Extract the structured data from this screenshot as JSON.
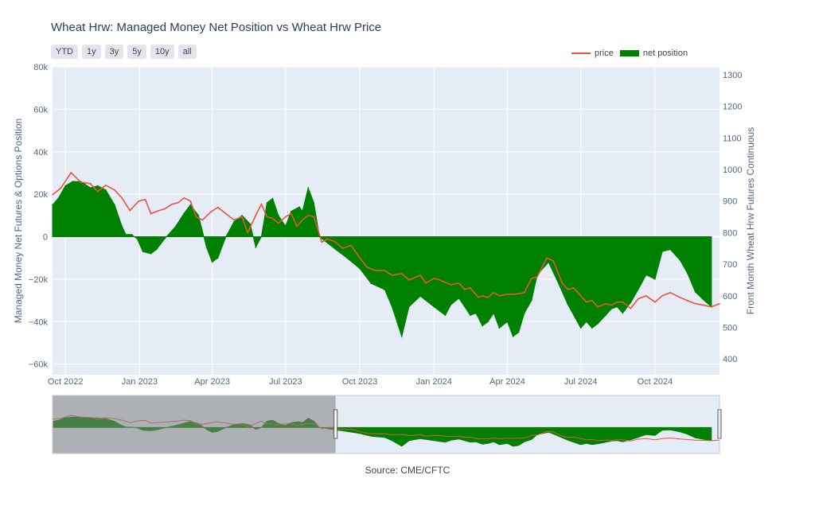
{
  "title": "Wheat Hrw: Managed Money Net Position vs Wheat Hrw Price",
  "range_buttons": [
    "YTD",
    "1y",
    "3y",
    "5y",
    "10y",
    "all"
  ],
  "legend": {
    "price": "price",
    "position": "net position"
  },
  "source": "Source: CME/CFTC",
  "colors": {
    "price": "#e8543b",
    "position": "#008000",
    "plot_bg": "#e5ecf6",
    "rangeslider_mask": "#808080"
  },
  "chart_data": {
    "type": "area",
    "title": "Wheat Hrw: Managed Money Net Position vs Wheat Hrw Price",
    "y_left": {
      "label": "Managed Money Net Futures & Options Position",
      "range": [
        -65000,
        80000
      ],
      "ticks": [
        80000,
        60000,
        40000,
        20000,
        0,
        -20000,
        -40000,
        -60000
      ],
      "tick_labels": [
        "80k",
        "60k",
        "40k",
        "20k",
        "0",
        "−20k",
        "−40k",
        "−60k"
      ]
    },
    "y_right": {
      "label": "Front Month Wheat Hrw Futures Continuous",
      "range": [
        350,
        1325
      ],
      "ticks": [
        1300,
        1200,
        1100,
        1000,
        900,
        800,
        700,
        600,
        500,
        400
      ],
      "tick_labels": [
        "1300",
        "1200",
        "1100",
        "1000",
        "900",
        "800",
        "700",
        "600",
        "500",
        "400"
      ]
    },
    "x": {
      "range": [
        "2022-09-15",
        "2024-12-20"
      ],
      "ticks": [
        "2022-10-01",
        "2023-01-01",
        "2023-04-01",
        "2023-07-01",
        "2023-10-01",
        "2024-01-01",
        "2024-04-01",
        "2024-07-01",
        "2024-10-01"
      ],
      "tick_labels": [
        "Oct 2022",
        "Jan 2023",
        "Apr 2023",
        "Jul 2023",
        "Oct 2023",
        "Jan 2024",
        "Apr 2024",
        "Jul 2024",
        "Oct 2024"
      ]
    },
    "series": [
      {
        "name": "net position",
        "axis": "left",
        "points": [
          [
            "2022-09-15",
            15000
          ],
          [
            "2022-09-22",
            18000
          ],
          [
            "2022-10-01",
            24000
          ],
          [
            "2022-10-10",
            26000
          ],
          [
            "2022-10-20",
            26000
          ],
          [
            "2022-11-01",
            23000
          ],
          [
            "2022-11-10",
            24000
          ],
          [
            "2022-11-20",
            22000
          ],
          [
            "2022-12-01",
            15000
          ],
          [
            "2022-12-10",
            5000
          ],
          [
            "2022-12-15",
            1000
          ],
          [
            "2022-12-22",
            1000
          ],
          [
            "2022-12-29",
            -1000
          ],
          [
            "2023-01-05",
            -7000
          ],
          [
            "2023-01-15",
            -8000
          ],
          [
            "2023-01-22",
            -6000
          ],
          [
            "2023-02-01",
            -1000
          ],
          [
            "2023-02-15",
            5000
          ],
          [
            "2023-02-25",
            11000
          ],
          [
            "2023-03-05",
            15000
          ],
          [
            "2023-03-15",
            10000
          ],
          [
            "2023-03-25",
            -5000
          ],
          [
            "2023-04-01",
            -12000
          ],
          [
            "2023-04-08",
            -10000
          ],
          [
            "2023-04-18",
            0
          ],
          [
            "2023-04-28",
            7000
          ],
          [
            "2023-05-08",
            10000
          ],
          [
            "2023-05-18",
            6000
          ],
          [
            "2023-05-25",
            -5000
          ],
          [
            "2023-06-01",
            0
          ],
          [
            "2023-06-08",
            16000
          ],
          [
            "2023-06-15",
            18000
          ],
          [
            "2023-06-22",
            10000
          ],
          [
            "2023-07-01",
            5000
          ],
          [
            "2023-07-08",
            12000
          ],
          [
            "2023-07-18",
            14000
          ],
          [
            "2023-07-22",
            12000
          ],
          [
            "2023-07-29",
            23000
          ],
          [
            "2023-08-05",
            16000
          ],
          [
            "2023-08-12",
            0
          ],
          [
            "2023-08-22",
            -3000
          ],
          [
            "2023-09-01",
            -6000
          ],
          [
            "2023-09-15",
            -10000
          ],
          [
            "2023-10-01",
            -15000
          ],
          [
            "2023-10-15",
            -22000
          ],
          [
            "2023-11-01",
            -25000
          ],
          [
            "2023-11-10",
            -33000
          ],
          [
            "2023-11-22",
            -47000
          ],
          [
            "2023-12-01",
            -33000
          ],
          [
            "2023-12-15",
            -28000
          ],
          [
            "2024-01-01",
            -33000
          ],
          [
            "2024-01-08",
            -35000
          ],
          [
            "2024-01-15",
            -37000
          ],
          [
            "2024-01-22",
            -32000
          ],
          [
            "2024-02-01",
            -29000
          ],
          [
            "2024-02-15",
            -37000
          ],
          [
            "2024-02-22",
            -36000
          ],
          [
            "2024-03-01",
            -42000
          ],
          [
            "2024-03-08",
            -40000
          ],
          [
            "2024-03-15",
            -36000
          ],
          [
            "2024-03-22",
            -43000
          ],
          [
            "2024-04-01",
            -40000
          ],
          [
            "2024-04-08",
            -47000
          ],
          [
            "2024-04-15",
            -45000
          ],
          [
            "2024-04-22",
            -36000
          ],
          [
            "2024-05-01",
            -30000
          ],
          [
            "2024-05-08",
            -18000
          ],
          [
            "2024-05-22",
            -12000
          ],
          [
            "2024-06-01",
            -20000
          ],
          [
            "2024-06-15",
            -32000
          ],
          [
            "2024-07-01",
            -43000
          ],
          [
            "2024-07-08",
            -40000
          ],
          [
            "2024-07-15",
            -43000
          ],
          [
            "2024-07-22",
            -41000
          ],
          [
            "2024-08-01",
            -37000
          ],
          [
            "2024-08-08",
            -34000
          ],
          [
            "2024-08-15",
            -33000
          ],
          [
            "2024-08-22",
            -36000
          ],
          [
            "2024-09-01",
            -31000
          ],
          [
            "2024-09-10",
            -25000
          ],
          [
            "2024-09-20",
            -18000
          ],
          [
            "2024-10-01",
            -20000
          ],
          [
            "2024-10-10",
            -7000
          ],
          [
            "2024-10-20",
            -6000
          ],
          [
            "2024-11-01",
            -11000
          ],
          [
            "2024-11-10",
            -17000
          ],
          [
            "2024-11-20",
            -26000
          ],
          [
            "2024-12-01",
            -30000
          ],
          [
            "2024-12-10",
            -33000
          ]
        ]
      },
      {
        "name": "price",
        "axis": "right",
        "points": [
          [
            "2022-09-15",
            920
          ],
          [
            "2022-09-25",
            940
          ],
          [
            "2022-10-08",
            990
          ],
          [
            "2022-10-20",
            960
          ],
          [
            "2022-11-01",
            955
          ],
          [
            "2022-11-10",
            930
          ],
          [
            "2022-11-20",
            950
          ],
          [
            "2022-12-01",
            935
          ],
          [
            "2022-12-10",
            910
          ],
          [
            "2022-12-20",
            870
          ],
          [
            "2022-12-31",
            900
          ],
          [
            "2023-01-08",
            905
          ],
          [
            "2023-01-15",
            860
          ],
          [
            "2023-01-25",
            870
          ],
          [
            "2023-02-01",
            875
          ],
          [
            "2023-02-10",
            890
          ],
          [
            "2023-02-18",
            895
          ],
          [
            "2023-02-25",
            910
          ],
          [
            "2023-03-05",
            900
          ],
          [
            "2023-03-12",
            850
          ],
          [
            "2023-03-20",
            840
          ],
          [
            "2023-03-30",
            865
          ],
          [
            "2023-04-08",
            880
          ],
          [
            "2023-04-18",
            860
          ],
          [
            "2023-04-28",
            840
          ],
          [
            "2023-05-08",
            850
          ],
          [
            "2023-05-15",
            800
          ],
          [
            "2023-05-25",
            855
          ],
          [
            "2023-06-01",
            890
          ],
          [
            "2023-06-08",
            850
          ],
          [
            "2023-06-15",
            845
          ],
          [
            "2023-06-22",
            830
          ],
          [
            "2023-07-01",
            850
          ],
          [
            "2023-07-08",
            860
          ],
          [
            "2023-07-15",
            820
          ],
          [
            "2023-07-22",
            840
          ],
          [
            "2023-07-29",
            855
          ],
          [
            "2023-08-05",
            850
          ],
          [
            "2023-08-15",
            770
          ],
          [
            "2023-08-22",
            780
          ],
          [
            "2023-09-01",
            770
          ],
          [
            "2023-09-10",
            750
          ],
          [
            "2023-09-20",
            760
          ],
          [
            "2023-10-01",
            720
          ],
          [
            "2023-10-10",
            690
          ],
          [
            "2023-10-20",
            680
          ],
          [
            "2023-11-01",
            680
          ],
          [
            "2023-11-10",
            665
          ],
          [
            "2023-11-22",
            670
          ],
          [
            "2023-12-01",
            650
          ],
          [
            "2023-12-15",
            665
          ],
          [
            "2023-12-22",
            640
          ],
          [
            "2024-01-01",
            655
          ],
          [
            "2024-01-08",
            650
          ],
          [
            "2024-01-22",
            635
          ],
          [
            "2024-02-01",
            640
          ],
          [
            "2024-02-08",
            620
          ],
          [
            "2024-02-15",
            625
          ],
          [
            "2024-02-25",
            595
          ],
          [
            "2024-03-01",
            600
          ],
          [
            "2024-03-08",
            595
          ],
          [
            "2024-03-15",
            610
          ],
          [
            "2024-03-22",
            600
          ],
          [
            "2024-04-01",
            605
          ],
          [
            "2024-04-10",
            605
          ],
          [
            "2024-04-22",
            610
          ],
          [
            "2024-05-01",
            655
          ],
          [
            "2024-05-08",
            660
          ],
          [
            "2024-05-20",
            720
          ],
          [
            "2024-05-28",
            710
          ],
          [
            "2024-06-08",
            640
          ],
          [
            "2024-06-15",
            620
          ],
          [
            "2024-06-22",
            625
          ],
          [
            "2024-07-01",
            600
          ],
          [
            "2024-07-08",
            580
          ],
          [
            "2024-07-15",
            585
          ],
          [
            "2024-07-22",
            565
          ],
          [
            "2024-08-01",
            575
          ],
          [
            "2024-08-08",
            570
          ],
          [
            "2024-08-15",
            580
          ],
          [
            "2024-08-22",
            580
          ],
          [
            "2024-09-01",
            560
          ],
          [
            "2024-09-10",
            590
          ],
          [
            "2024-09-20",
            600
          ],
          [
            "2024-10-01",
            580
          ],
          [
            "2024-10-10",
            600
          ],
          [
            "2024-10-20",
            610
          ],
          [
            "2024-11-01",
            595
          ],
          [
            "2024-11-10",
            585
          ],
          [
            "2024-11-20",
            575
          ],
          [
            "2024-12-01",
            570
          ],
          [
            "2024-12-10",
            565
          ],
          [
            "2024-12-20",
            575
          ]
        ]
      }
    ],
    "rangeslider": {
      "visible": true,
      "selected": [
        "2023-09-01",
        "2024-12-20"
      ]
    },
    "legend_position": "top-right",
    "grid": true
  }
}
